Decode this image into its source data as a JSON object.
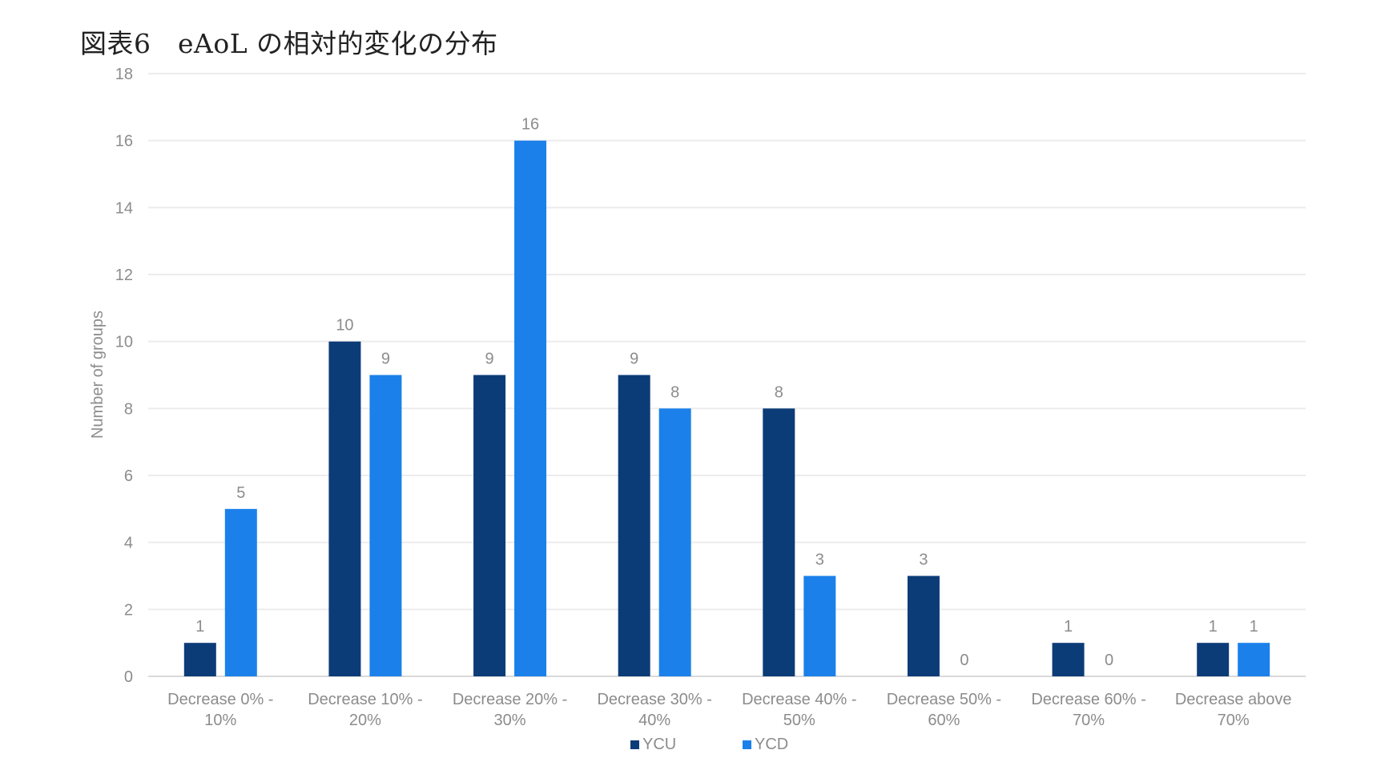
{
  "title": "図表6　eAoL の相対的変化の分布",
  "chart_data": {
    "type": "bar",
    "ylabel": "Number of groups",
    "xlabel": "",
    "ylim": [
      0,
      18
    ],
    "yticks": [
      0,
      2,
      4,
      6,
      8,
      10,
      12,
      14,
      16,
      18
    ],
    "grid": true,
    "legend_position": "bottom",
    "categories": [
      [
        "Decrease 0% -",
        "10%"
      ],
      [
        "Decrease 10% -",
        "20%"
      ],
      [
        "Decrease 20% -",
        "30%"
      ],
      [
        "Decrease 30% -",
        "40%"
      ],
      [
        "Decrease 40% -",
        "50%"
      ],
      [
        "Decrease 50% -",
        "60%"
      ],
      [
        "Decrease 60% -",
        "70%"
      ],
      [
        "Decrease above",
        "70%"
      ]
    ],
    "series": [
      {
        "name": "YCU",
        "color": "#0c3c78",
        "values": [
          1,
          10,
          9,
          9,
          8,
          3,
          1,
          1
        ]
      },
      {
        "name": "YCD",
        "color": "#1b80ea",
        "values": [
          5,
          9,
          16,
          8,
          3,
          0,
          0,
          1
        ]
      }
    ]
  }
}
